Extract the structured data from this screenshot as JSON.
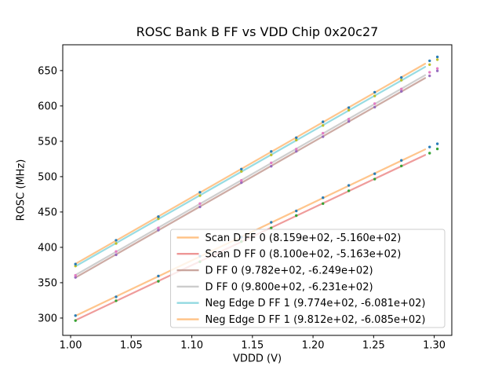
{
  "chart_data": {
    "type": "scatter",
    "title": "ROSC Bank B FF vs VDD Chip 0x20c27",
    "xlabel": "VDDD (V)",
    "ylabel": "ROSC (MHz)",
    "xlim": [
      0.9935,
      1.3145
    ],
    "ylim": [
      275.5,
      686.5
    ],
    "xticks": [
      1.0,
      1.05,
      1.1,
      1.15,
      1.2,
      1.25,
      1.3
    ],
    "xtick_labels": [
      "1.00",
      "1.05",
      "1.10",
      "1.15",
      "1.20",
      "1.25",
      "1.30"
    ],
    "yticks": [
      300,
      350,
      400,
      450,
      500,
      550,
      600,
      650
    ],
    "ytick_labels": [
      "300",
      "350",
      "400",
      "450",
      "500",
      "550",
      "600",
      "650"
    ],
    "grid": false,
    "legend_position": "lower right",
    "x": [
      1.004,
      1.0375,
      1.0724,
      1.1067,
      1.1409,
      1.1655,
      1.1862,
      1.2082,
      1.2295,
      1.2509,
      1.2729,
      1.2962,
      1.3026
    ],
    "fit_line_x_range": [
      1.004,
      1.2925
    ],
    "series": [
      {
        "label": "Scan D FF 0 (8.159e+02, -5.160e+02)",
        "fit_slope": 815.9,
        "fit_intercept": -516.0,
        "line_color": "#ffbb78",
        "point_color": "#1f77b4",
        "values": [
          303.5,
          330.0,
          359.4,
          387.5,
          414.4,
          435.4,
          451.5,
          470.2,
          487.6,
          504.1,
          523.0,
          541.9,
          546.4
        ]
      },
      {
        "label": "Scan D FF 0 (8.100e+02, -5.163e+02)",
        "fit_slope": 810.0,
        "fit_intercept": -516.3,
        "line_color": "#ec8b8a",
        "point_color": "#2ca02c",
        "values": [
          296.4,
          324.5,
          352.0,
          379.7,
          408.2,
          427.5,
          444.9,
          461.9,
          480.0,
          496.5,
          515.1,
          533.2,
          539.2
        ]
      },
      {
        "label": "D FF 0 (9.782e+02, -6.249e+02)",
        "fit_slope": 978.2,
        "fit_intercept": -624.9,
        "line_color": "#c49c94",
        "point_color": "#9467bd",
        "values": [
          357.5,
          389.5,
          424.4,
          457.2,
          491.5,
          514.7,
          535.8,
          556.5,
          578.1,
          598.3,
          620.6,
          642.6,
          649.6
        ]
      },
      {
        "label": "D FF 0 (9.800e+02, -6.231e+02)",
        "fit_slope": 980.0,
        "fit_intercept": -623.1,
        "line_color": "#c7c7c7",
        "point_color": "#e377c2",
        "values": [
          360.4,
          394.1,
          427.5,
          461.9,
          494.6,
          519.5,
          539.0,
          561.4,
          581.4,
          603.2,
          623.9,
          647.6,
          653.0
        ]
      },
      {
        "label": "Neg Edge D FF 1 (9.774e+02, -6.081e+02)",
        "fit_slope": 977.4,
        "fit_intercept": -608.1,
        "line_color": "#86d6de",
        "point_color": "#bcbd22",
        "values": [
          373.6,
          405.5,
          440.4,
          473.2,
          507.4,
          530.7,
          551.7,
          572.4,
          594.0,
          614.1,
          636.4,
          658.4,
          665.5
        ]
      },
      {
        "label": "Neg Edge D FF 1 (9.812e+02, -6.085e+02)",
        "fit_slope": 981.2,
        "fit_intercept": -608.5,
        "line_color": "#ffbb78",
        "point_color": "#1f77b4",
        "values": [
          376.3,
          410.0,
          443.4,
          477.9,
          510.7,
          535.6,
          555.1,
          577.5,
          597.6,
          619.4,
          640.2,
          663.8,
          669.3
        ]
      }
    ]
  }
}
